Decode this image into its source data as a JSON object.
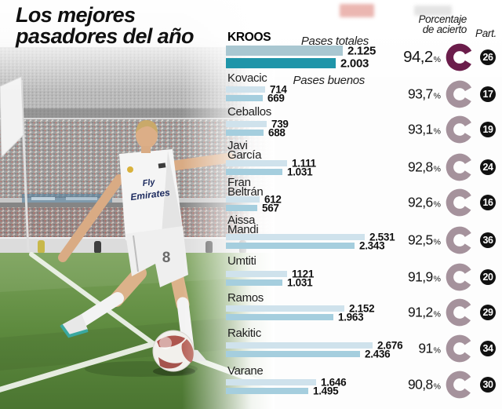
{
  "title": {
    "line1": "Los mejores",
    "line2": "pasadores del año"
  },
  "photo": {
    "jersey_line1": "Fly",
    "jersey_line2": "Emirates",
    "shorts_number": "8"
  },
  "chart_data": {
    "type": "bar",
    "orientation": "horizontal",
    "title": "Los mejores pasadores del año",
    "series_labels": {
      "total": "Pases totales",
      "good": "Pases buenos"
    },
    "column_headers": {
      "accuracy_line1": "Porcentaje",
      "accuracy_line2": "de acierto",
      "matches": "Part."
    },
    "players": [
      {
        "name": "KROOS",
        "name_lines": [
          "KROOS"
        ],
        "total": 2125,
        "total_label": "2.125",
        "good": 2003,
        "good_label": "2.003",
        "accuracy_pct": 94.2,
        "accuracy_label": "94,2",
        "matches": 26,
        "highlight": true
      },
      {
        "name": "Kovacic",
        "name_lines": [
          "Kovacic"
        ],
        "total": 714,
        "total_label": "714",
        "good": 669,
        "good_label": "669",
        "accuracy_pct": 93.7,
        "accuracy_label": "93,7",
        "matches": 17,
        "highlight": false
      },
      {
        "name": "Ceballos",
        "name_lines": [
          "Ceballos"
        ],
        "total": 739,
        "total_label": "739",
        "good": 688,
        "good_label": "688",
        "accuracy_pct": 93.1,
        "accuracy_label": "93,1",
        "matches": 19,
        "highlight": false
      },
      {
        "name": "Javi García",
        "name_lines": [
          "Javi",
          "García"
        ],
        "total": 1111,
        "total_label": "1.111",
        "good": 1031,
        "good_label": "1.031",
        "accuracy_pct": 92.8,
        "accuracy_label": "92,8",
        "matches": 24,
        "highlight": false
      },
      {
        "name": "Fran Beltrán",
        "name_lines": [
          "Fran",
          "Beltrán"
        ],
        "total": 612,
        "total_label": "612",
        "good": 567,
        "good_label": "567",
        "accuracy_pct": 92.6,
        "accuracy_label": "92,6",
        "matches": 16,
        "highlight": false
      },
      {
        "name": "Aissa Mandi",
        "name_lines": [
          "Aissa",
          "Mandi"
        ],
        "total": 2531,
        "total_label": "2.531",
        "good": 2343,
        "good_label": "2.343",
        "accuracy_pct": 92.5,
        "accuracy_label": "92,5",
        "matches": 36,
        "highlight": false
      },
      {
        "name": "Umtiti",
        "name_lines": [
          "Umtiti"
        ],
        "total": 1121,
        "total_label": "1121",
        "good": 1031,
        "good_label": "1.031",
        "accuracy_pct": 91.9,
        "accuracy_label": "91,9",
        "matches": 20,
        "highlight": false
      },
      {
        "name": "Ramos",
        "name_lines": [
          "Ramos"
        ],
        "total": 2152,
        "total_label": "2.152",
        "good": 1963,
        "good_label": "1.963",
        "accuracy_pct": 91.2,
        "accuracy_label": "91,2",
        "matches": 29,
        "highlight": false
      },
      {
        "name": "Rakitic",
        "name_lines": [
          "Rakitic"
        ],
        "total": 2676,
        "total_label": "2.676",
        "good": 2436,
        "good_label": "2.436",
        "accuracy_pct": 91.0,
        "accuracy_label": "91",
        "matches": 34,
        "highlight": false
      },
      {
        "name": "Varane",
        "name_lines": [
          "Varane"
        ],
        "total": 1646,
        "total_label": "1.646",
        "good": 1495,
        "good_label": "1.495",
        "accuracy_pct": 90.8,
        "accuracy_label": "90,8",
        "matches": 30,
        "highlight": false
      }
    ],
    "colors": {
      "bar_total_highlight": "#a9c7d1",
      "bar_good_highlight": "#1f95a9",
      "bar_total": "#cfe2ec",
      "bar_good": "#a5cede",
      "donut_highlight": "#6b1d4b",
      "donut": "#a5929c",
      "badge_bg": "#111111"
    }
  }
}
